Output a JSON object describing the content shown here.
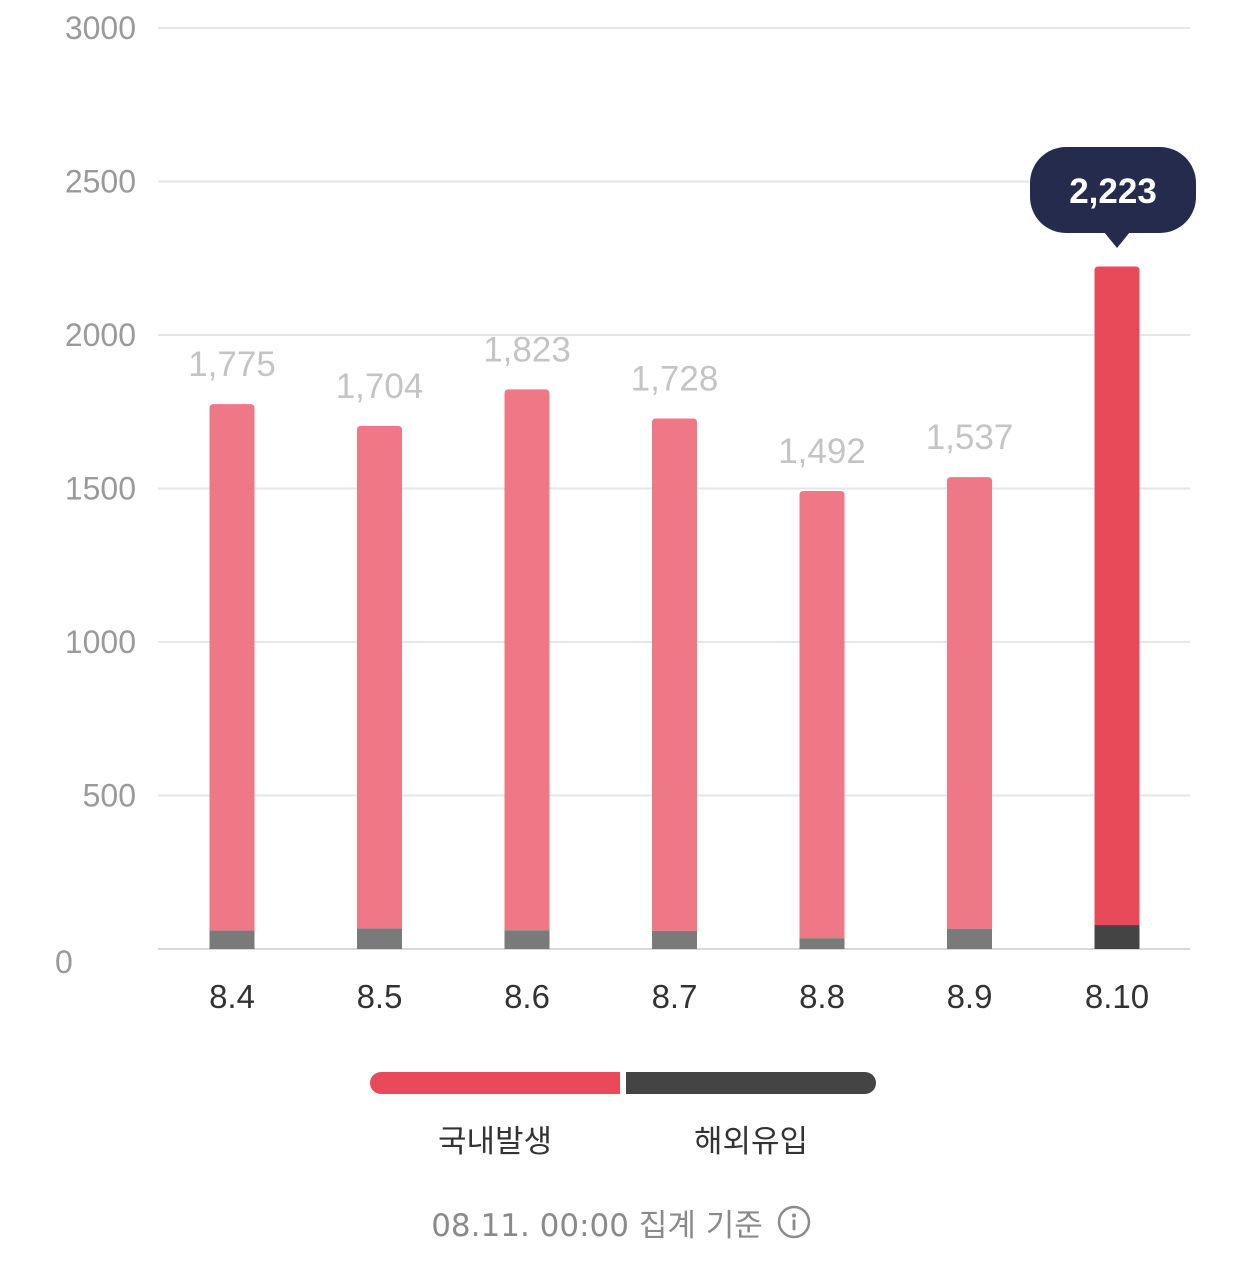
{
  "chart_data": {
    "type": "bar",
    "stacked": true,
    "categories": [
      "8.4",
      "8.5",
      "8.6",
      "8.7",
      "8.8",
      "8.9",
      "8.10"
    ],
    "totals": [
      1775,
      1704,
      1823,
      1728,
      1492,
      1537,
      2223
    ],
    "total_labels": [
      "1,775",
      "1,704",
      "1,823",
      "1,728",
      "1,492",
      "1,537",
      "2,223"
    ],
    "series": [
      {
        "name": "국내발생",
        "values": [
          1715,
          1637,
          1762,
          1669,
          1457,
          1471,
          2145
        ],
        "color": "#e84a5a"
      },
      {
        "name": "해외유입",
        "values": [
          60,
          67,
          61,
          59,
          35,
          66,
          78
        ],
        "color": "#444444"
      }
    ],
    "ylim": [
      0,
      3000
    ],
    "yticks": [
      0,
      500,
      1000,
      1500,
      2000,
      2500,
      3000
    ],
    "highlight_index": 6,
    "grid": true,
    "legend_position": "bottom"
  },
  "colors": {
    "domestic_highlight": "#e84a5a",
    "domestic_dim": "#ef7886",
    "imported_highlight": "#444444",
    "imported_dim": "#7a7a7a",
    "tooltip_bg": "#252b4d",
    "grid": "#e6e6e6",
    "value_label": "#c4c4c4",
    "tick_label": "#9a9a9a",
    "category_label": "#333333"
  },
  "legend": {
    "domestic_label": "국내발생",
    "imported_label": "해외유입"
  },
  "footer": {
    "text": "08.11. 00:00 집계 기준",
    "icon": "info-icon"
  }
}
